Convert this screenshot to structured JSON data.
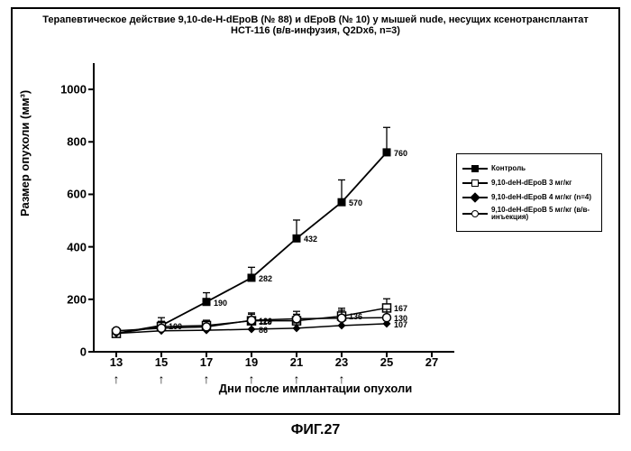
{
  "title_line1": "Терапевтическое действие 9,10-de-H-dEpoB (№ 88) и dEpoB (№ 10) у мышей nude, несущих ксенотрансплантат",
  "title_line2": "HCT-116 (в/в-инфузия, Q2Dx6, n=3)",
  "title_fontsize": 11,
  "ylabel": "Размер опухоли (мм³)",
  "xlabel": "Дни после имплантации опухоли",
  "fig_label": "ФИГ.27",
  "axis_fontsize": 13,
  "x": {
    "min": 12,
    "max": 28,
    "ticks": [
      13,
      15,
      17,
      19,
      21,
      23,
      25,
      27
    ]
  },
  "y": {
    "min": 0,
    "max": 1100,
    "ticks": [
      0,
      200,
      400,
      600,
      800,
      1000
    ]
  },
  "arrows_at_x": [
    13,
    15,
    17,
    19,
    21,
    23
  ],
  "colors": {
    "axis": "#000000",
    "line": "#000000",
    "bg": "#ffffff"
  },
  "series": [
    {
      "name": "Контроль",
      "marker": "filled-square",
      "x": [
        13,
        15,
        17,
        19,
        21,
        23,
        25
      ],
      "y": [
        70,
        100,
        190,
        282,
        432,
        570,
        760
      ],
      "err": [
        0,
        30,
        35,
        40,
        70,
        85,
        95
      ],
      "labels": [
        "",
        "100",
        "190",
        "282",
        "432",
        "570",
        "760"
      ],
      "linewidth": 1.8
    },
    {
      "name": "9,10-deH-dEpoB 3 мг/кг",
      "marker": "open-square",
      "x": [
        13,
        15,
        17,
        19,
        21,
        23,
        25
      ],
      "y": [
        70,
        96,
        100,
        118,
        118,
        136,
        167
      ],
      "err": [
        0,
        20,
        20,
        25,
        25,
        30,
        35
      ],
      "labels": [
        "",
        "",
        "",
        "118",
        "",
        "136",
        "167"
      ],
      "linewidth": 1.5
    },
    {
      "name": "9,10-deH-dEpoB 4 мг/кг (n=4)",
      "marker": "filled-diamond",
      "x": [
        13,
        15,
        17,
        19,
        21,
        23,
        25
      ],
      "y": [
        70,
        80,
        82,
        86,
        90,
        100,
        107
      ],
      "err": [
        0,
        18,
        18,
        20,
        20,
        25,
        25
      ],
      "labels": [
        "",
        "",
        "",
        "86",
        "",
        "",
        "107"
      ],
      "linewidth": 1.5
    },
    {
      "name": "9,10-deH-dEpoB 5 мг/кг (в/в-инъекция)",
      "marker": "open-circle",
      "x": [
        13,
        15,
        17,
        19,
        21,
        23,
        25
      ],
      "y": [
        80,
        90,
        95,
        120,
        126,
        128,
        130
      ],
      "err": [
        0,
        25,
        25,
        28,
        28,
        30,
        32
      ],
      "labels": [
        "",
        "",
        "",
        "120",
        "",
        "",
        "130"
      ],
      "linewidth": 1.5
    }
  ],
  "legend": [
    {
      "text": "Контроль",
      "marker": "filled-square"
    },
    {
      "text": "9,10-deH-dEpoB 3 мг/кг",
      "marker": "open-square"
    },
    {
      "text": "9,10-deH-dEpoB 4 мг/кг (n=4)",
      "marker": "filled-diamond"
    },
    {
      "text": "9,10-deH-dEpoB 5 мг/кг (в/в-инъекция)",
      "marker": "open-circle"
    }
  ]
}
